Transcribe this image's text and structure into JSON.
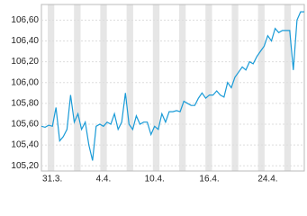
{
  "chart_data": {
    "type": "line",
    "categories": [
      null,
      null,
      null,
      "31.3.",
      null,
      null,
      null,
      null,
      null,
      null,
      null,
      null,
      null,
      null,
      null,
      null,
      null,
      "4.4.",
      null,
      null,
      null,
      null,
      null,
      null,
      null,
      null,
      null,
      null,
      null,
      null,
      null,
      "10.4.",
      null,
      null,
      null,
      null,
      null,
      null,
      null,
      null,
      null,
      null,
      null,
      null,
      null,
      null,
      "16.4.",
      null,
      null,
      null,
      null,
      null,
      null,
      null,
      null,
      null,
      null,
      null,
      null,
      null,
      null,
      null,
      "24.4.",
      null,
      null,
      null,
      null,
      null,
      null,
      null,
      null,
      null,
      null
    ],
    "series": [
      {
        "color": "#1a9bd7",
        "values": [
          105.58,
          105.57,
          105.59,
          105.58,
          105.76,
          105.44,
          105.48,
          105.55,
          105.88,
          105.62,
          105.7,
          105.55,
          105.62,
          105.4,
          105.25,
          105.58,
          105.6,
          105.58,
          105.62,
          105.6,
          105.7,
          105.55,
          105.62,
          105.9,
          105.6,
          105.55,
          105.68,
          105.6,
          105.62,
          105.62,
          105.5,
          105.58,
          105.55,
          105.7,
          105.62,
          105.72,
          105.72,
          105.73,
          105.72,
          105.82,
          105.8,
          105.78,
          105.78,
          105.85,
          105.9,
          105.85,
          105.88,
          105.88,
          105.92,
          105.88,
          105.86,
          106.0,
          105.95,
          106.05,
          106.1,
          106.15,
          106.12,
          106.2,
          106.18,
          106.25,
          106.3,
          106.35,
          106.45,
          106.4,
          106.52,
          106.48,
          106.5,
          106.5,
          106.5,
          106.12,
          106.6,
          106.68,
          106.68
        ]
      }
    ],
    "ylim": [
      105.15,
      106.75
    ],
    "yticks": [
      {
        "value": 105.2,
        "label": "105,20"
      },
      {
        "value": 105.4,
        "label": "105,40"
      },
      {
        "value": 105.6,
        "label": "105,60"
      },
      {
        "value": 105.8,
        "label": "105,80"
      },
      {
        "value": 106.0,
        "label": "106,00"
      },
      {
        "value": 106.2,
        "label": "106,20"
      },
      {
        "value": 106.4,
        "label": "106,40"
      },
      {
        "value": 106.6,
        "label": "106,60"
      }
    ],
    "grid": true
  }
}
